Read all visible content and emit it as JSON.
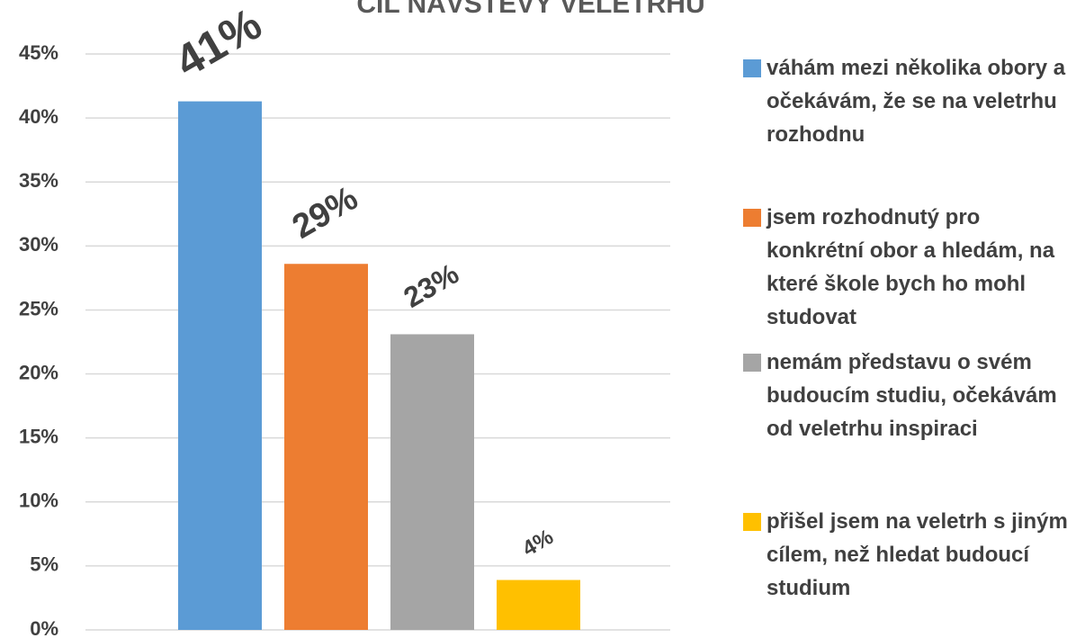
{
  "chart_data": {
    "type": "bar",
    "title": "CÍL NÁVŠTĚVY VELETRHU",
    "categories": [
      null
    ],
    "series": [
      {
        "name": "váhám mezi několika obory a očekávám, že se na veletrhu rozhodnu",
        "color": "#5b9bd5",
        "values": [
          41.3
        ],
        "value_labels": [
          "41%"
        ]
      },
      {
        "name": "jsem rozhodnutý pro konkrétní obor a hledám, na které škole bych ho mohl studovat",
        "color": "#ed7d31",
        "values": [
          28.6
        ],
        "value_labels": [
          "29%"
        ]
      },
      {
        "name": "nemám představu o svém budoucím studiu, očekávám od veletrhu inspiraci",
        "color": "#a5a5a5",
        "values": [
          23.1
        ],
        "value_labels": [
          "23%"
        ]
      },
      {
        "name": "přišel jsem na veletrh s jiným cílem, než hledat budoucí studium",
        "color": "#ffc000",
        "values": [
          3.9
        ],
        "value_labels": [
          "4%"
        ]
      }
    ],
    "ylim": [
      0,
      45
    ],
    "yticks": [
      {
        "value": 0,
        "label": "0%"
      },
      {
        "value": 5,
        "label": "5%"
      },
      {
        "value": 10,
        "label": "10%"
      },
      {
        "value": 15,
        "label": "15%"
      },
      {
        "value": 20,
        "label": "20%"
      },
      {
        "value": 25,
        "label": "25%"
      },
      {
        "value": 30,
        "label": "30%"
      },
      {
        "value": 35,
        "label": "35%"
      },
      {
        "value": 40,
        "label": "40%"
      },
      {
        "value": 45,
        "label": "45%"
      }
    ],
    "grid": true,
    "legend": "right"
  }
}
